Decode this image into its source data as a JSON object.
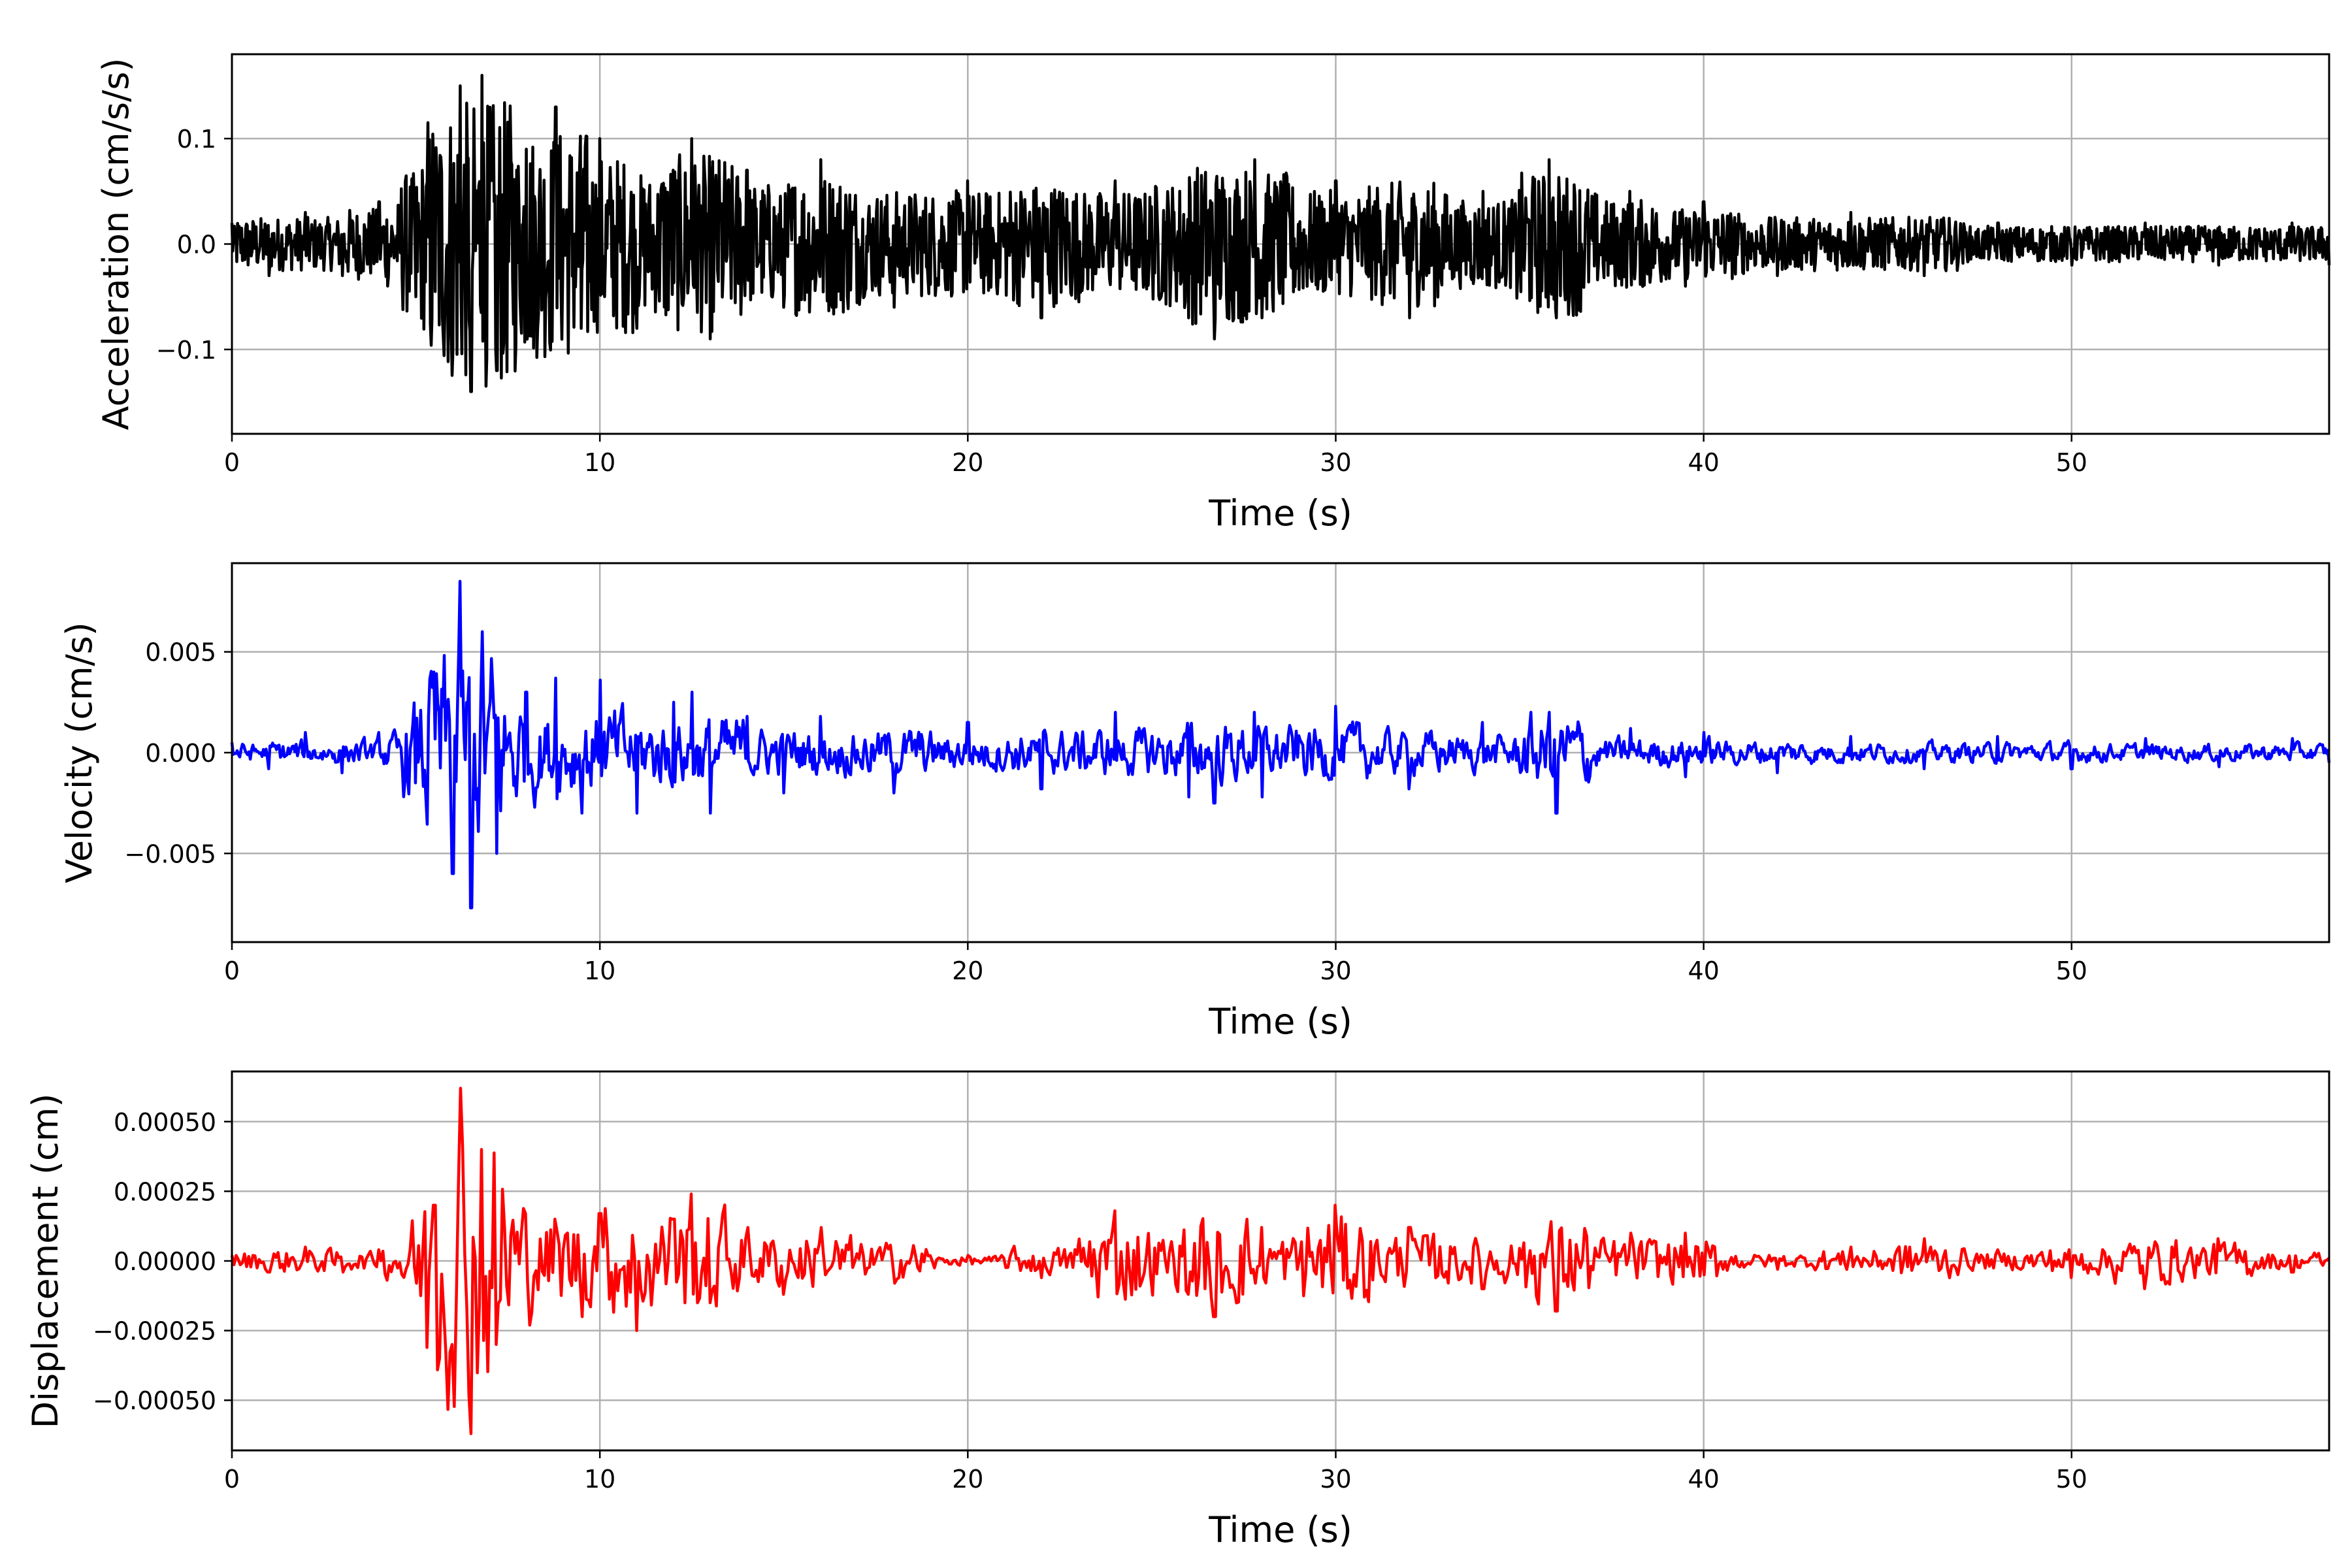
{
  "chart_data": [
    {
      "type": "line",
      "xlabel": "Time (s)",
      "ylabel": "Acceleration (cm/s/s)",
      "xlim": [
        0,
        57
      ],
      "ylim": [
        -0.18,
        0.18
      ],
      "xticks": [
        0,
        10,
        20,
        30,
        40,
        50
      ],
      "yticks": [
        -0.1,
        0.0,
        0.1
      ],
      "ytick_labels": [
        "−0.1",
        "0.0",
        "0.1"
      ],
      "grid": true,
      "series": [
        {
          "color": "#000000",
          "x": [
            0,
            1,
            2,
            3,
            4,
            5,
            5.5,
            6,
            6.2,
            6.5,
            6.8,
            7.2,
            8,
            8.8,
            9.5,
            10,
            11,
            12,
            12.5,
            13,
            14,
            15,
            16,
            18,
            20,
            22,
            24,
            26,
            26.7,
            27.8,
            28,
            30,
            32,
            34,
            35.8,
            36,
            38,
            39.5,
            40,
            42,
            44,
            46,
            48,
            50,
            52,
            54,
            56,
            57
          ],
          "y": [
            0.02,
            -0.03,
            0.03,
            -0.03,
            0.04,
            -0.05,
            0.08,
            -0.1,
            0.15,
            -0.14,
            0.16,
            -0.12,
            0.09,
            0.13,
            -0.08,
            0.1,
            -0.08,
            0.07,
            0.1,
            -0.09,
            0.07,
            -0.06,
            0.08,
            -0.06,
            0.06,
            -0.07,
            0.06,
            -0.07,
            -0.09,
            0.08,
            -0.07,
            0.06,
            -0.07,
            0.05,
            0.08,
            -0.07,
            0.05,
            -0.04,
            0.04,
            -0.03,
            0.03,
            -0.03,
            0.02,
            -0.02,
            0.02,
            -0.02,
            0.02,
            -0.02
          ]
        }
      ]
    },
    {
      "type": "line",
      "xlabel": "Time (s)",
      "ylabel": "Velocity (cm/s)",
      "xlim": [
        0,
        57
      ],
      "ylim": [
        -0.0094,
        0.0094
      ],
      "xticks": [
        0,
        10,
        20,
        30,
        40,
        50
      ],
      "yticks": [
        -0.005,
        0.0,
        0.005
      ],
      "ytick_labels": [
        "−0.005",
        "0.000",
        "0.005"
      ],
      "grid": true,
      "series": [
        {
          "color": "#0000ff",
          "x": [
            0,
            1,
            2,
            3,
            4,
            5,
            5.5,
            6,
            6.2,
            6.5,
            6.8,
            7.2,
            8,
            8.8,
            9.5,
            10,
            11,
            12,
            12.5,
            13,
            14,
            15,
            16,
            18,
            20,
            22,
            24,
            26,
            26.7,
            27.8,
            28,
            30,
            32,
            34,
            35.8,
            36,
            38,
            39.5,
            40,
            42,
            44,
            46,
            48,
            50,
            52,
            54,
            56,
            57
          ],
          "y": [
            0.0005,
            -0.0008,
            0.001,
            -0.001,
            0.001,
            -0.0015,
            0.004,
            -0.006,
            0.0085,
            -0.0077,
            0.006,
            -0.005,
            0.003,
            0.0037,
            -0.003,
            0.0036,
            -0.003,
            0.0025,
            0.003,
            -0.003,
            0.0018,
            -0.002,
            0.0018,
            -0.002,
            0.0015,
            -0.0018,
            0.002,
            -0.0022,
            -0.0025,
            0.002,
            -0.0022,
            0.0023,
            -0.0018,
            0.0015,
            0.002,
            -0.003,
            0.0012,
            -0.0012,
            0.001,
            -0.001,
            0.0008,
            -0.0008,
            0.0008,
            -0.0008,
            0.0007,
            -0.0007,
            0.0007,
            -0.0005
          ]
        }
      ]
    },
    {
      "type": "line",
      "xlabel": "Time (s)",
      "ylabel": "Displacement (cm)",
      "xlim": [
        0,
        57
      ],
      "ylim": [
        -0.00068,
        0.00068
      ],
      "xticks": [
        0,
        10,
        20,
        30,
        40,
        50
      ],
      "yticks": [
        -0.0005,
        -0.00025,
        0.0,
        0.00025,
        0.0005
      ],
      "ytick_labels": [
        "−0.00050",
        "−0.00025",
        "0.00000",
        "0.00025",
        "0.00050"
      ],
      "grid": true,
      "series": [
        {
          "color": "#ff0000",
          "x": [
            0,
            1,
            2,
            3,
            4,
            5,
            5.5,
            6,
            6.2,
            6.5,
            6.8,
            7.2,
            8,
            8.8,
            9.5,
            10,
            11,
            12,
            12.5,
            13,
            14,
            15,
            16,
            18,
            20,
            22,
            24,
            26,
            26.7,
            27.8,
            28,
            30,
            32,
            34,
            35.8,
            36,
            38,
            39.5,
            40,
            42,
            44,
            46,
            48,
            50,
            52,
            54,
            56,
            57
          ],
          "y": [
            2e-05,
            -4e-05,
            5e-05,
            -4e-05,
            4e-05,
            -8e-05,
            0.0002,
            -0.0003,
            0.00062,
            -0.00062,
            0.0004,
            -0.0003,
            0.00017,
            0.00015,
            -0.0002,
            0.00017,
            -0.00025,
            0.00015,
            0.00024,
            -0.00015,
            0.00012,
            -0.00012,
            0.00012,
            -8e-05,
            2e-05,
            -6e-05,
            0.00018,
            -0.00012,
            -0.0002,
            -8e-05,
            0.00012,
            0.0002,
            0.00012,
            -0.0001,
            8e-05,
            -0.00018,
            0.0001,
            0.0001,
            -5e-05,
            -3e-05,
            5e-05,
            8e-05,
            4e-05,
            -6e-05,
            -0.0001,
            8e-05,
            -4e-05,
            1e-05
          ]
        }
      ]
    }
  ]
}
